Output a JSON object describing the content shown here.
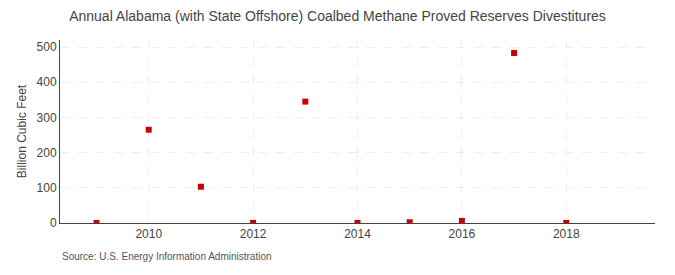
{
  "chart_data": {
    "type": "scatter",
    "title": "Annual Alabama (with State Offshore) Coalbed Methane Proved Reserves Divestitures",
    "ylabel": "Billion Cubic Feet",
    "annotation": "Source: U.S. Energy Information Administration",
    "x": [
      2009,
      2010,
      2011,
      2012,
      2013,
      2014,
      2015,
      2016,
      2017,
      2018
    ],
    "values": [
      0.3,
      265,
      103,
      0.3,
      345,
      0.3,
      2,
      6,
      483,
      0.3
    ],
    "color": "#CC0000",
    "marker": "square",
    "xlim": [
      2008.3,
      2019.7
    ],
    "ylim": [
      0,
      520
    ],
    "xticks": [
      2010,
      2012,
      2014,
      2016,
      2018
    ],
    "yticks": [
      0,
      100,
      200,
      300,
      400,
      500
    ],
    "grid": true
  }
}
